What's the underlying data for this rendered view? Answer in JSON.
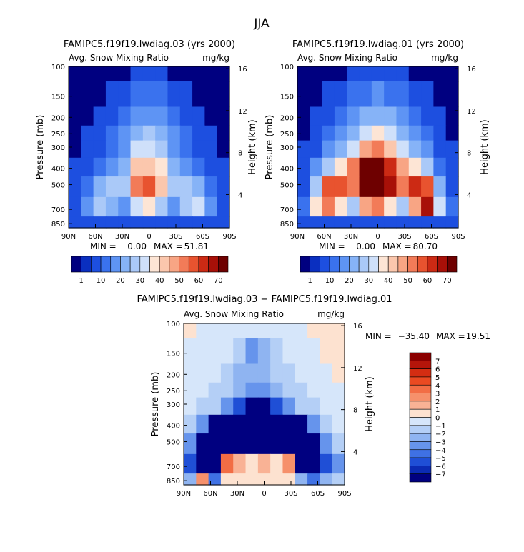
{
  "figure_title": "JJA",
  "colorbar_abs": {
    "labels": [
      "1",
      "10",
      "20",
      "30",
      "40",
      "50",
      "60",
      "70"
    ],
    "colors": [
      "#000080",
      "#0a2fc0",
      "#1d4fe0",
      "#3a72ee",
      "#5e94f4",
      "#86b3f7",
      "#aac9f8",
      "#cfe0fa",
      "#fde5d5",
      "#fbc7ad",
      "#f8a584",
      "#f27b58",
      "#e8532f",
      "#cc2a14",
      "#a81008",
      "#6e0000"
    ]
  },
  "colorbar_diff": {
    "labels": [
      "7",
      "6",
      "5",
      "4",
      "3",
      "2",
      "1",
      "0",
      "−1",
      "−2",
      "−3",
      "−4",
      "−5",
      "−6",
      "−7"
    ],
    "colors": [
      "#8b0000",
      "#b5150a",
      "#d42d12",
      "#ea4a22",
      "#f26d45",
      "#f6906b",
      "#f9b295",
      "#fde2d0",
      "#d6e6fa",
      "#b4cff6",
      "#8fb4f1",
      "#6694ec",
      "#3f71e4",
      "#1f4fd6",
      "#0b2bb4",
      "#000080"
    ]
  },
  "chart_data": [
    {
      "type": "heatmap",
      "title": "FAMIPC5.f19f19.lwdiag.03 (yrs 2000)",
      "subtitle_left": "Avg. Snow Mixing Ratio",
      "subtitle_right": "mg/kg",
      "xlabel": "",
      "ylabel": "Pressure (mb)",
      "ylabel_right": "Height (km)",
      "x_ticks": [
        "90N",
        "60N",
        "30N",
        "0",
        "30S",
        "60S",
        "90S"
      ],
      "y_ticks": [
        "100",
        "150",
        "200",
        "250",
        "300",
        "400",
        "500",
        "700",
        "850"
      ],
      "y_right_ticks": [
        "16",
        "12",
        "8",
        "4"
      ],
      "min_label": "MIN =",
      "min_value": "0.00",
      "max_label": "MAX =",
      "max_value": "51.81",
      "x_values": [
        90,
        75,
        60,
        45,
        30,
        15,
        0,
        -15,
        -30,
        -45,
        -60,
        -75,
        -90
      ],
      "p_levels": [
        100,
        150,
        200,
        250,
        300,
        400,
        500,
        700,
        850
      ],
      "values": [
        [
          0,
          0,
          0,
          0,
          0,
          1,
          1,
          1,
          0,
          0,
          0,
          0,
          0
        ],
        [
          0,
          0,
          0,
          1,
          3,
          6,
          7,
          6,
          3,
          1,
          0,
          0,
          0
        ],
        [
          0,
          0,
          1,
          3,
          6,
          12,
          14,
          12,
          6,
          3,
          1,
          0,
          0
        ],
        [
          0,
          1,
          2,
          5,
          10,
          18,
          20,
          17,
          10,
          5,
          2,
          1,
          0
        ],
        [
          0,
          2,
          4,
          8,
          14,
          26,
          28,
          24,
          14,
          8,
          4,
          2,
          0
        ],
        [
          1,
          4,
          8,
          12,
          18,
          35,
          38,
          30,
          18,
          12,
          8,
          4,
          1
        ],
        [
          2,
          8,
          15,
          20,
          24,
          45,
          50,
          35,
          22,
          20,
          15,
          8,
          2
        ],
        [
          4,
          12,
          22,
          18,
          12,
          25,
          30,
          20,
          12,
          22,
          28,
          12,
          4
        ],
        [
          1,
          1,
          1,
          1,
          1,
          1,
          1,
          1,
          1,
          1,
          1,
          1,
          1
        ]
      ]
    },
    {
      "type": "heatmap",
      "title": "FAMIPC5.f19f19.lwdiag.01 (yrs 2000)",
      "subtitle_left": "Avg. Snow Mixing Ratio",
      "subtitle_right": "mg/kg",
      "xlabel": "",
      "ylabel": "Pressure (mb)",
      "ylabel_right": "Height (km)",
      "x_ticks": [
        "90N",
        "60N",
        "30N",
        "0",
        "30S",
        "60S",
        "90S"
      ],
      "y_ticks": [
        "100",
        "150",
        "200",
        "250",
        "300",
        "400",
        "500",
        "700",
        "850"
      ],
      "y_right_ticks": [
        "16",
        "12",
        "8",
        "4"
      ],
      "min_label": "MIN =",
      "min_value": "0.00",
      "max_label": "MAX =",
      "max_value": "80.70",
      "x_values": [
        90,
        75,
        60,
        45,
        30,
        15,
        0,
        -15,
        -30,
        -45,
        -60,
        -75,
        -90
      ],
      "p_levels": [
        100,
        150,
        200,
        250,
        300,
        400,
        500,
        700,
        850
      ],
      "values": [
        [
          0,
          0,
          0,
          0,
          1,
          1,
          2,
          1,
          1,
          0,
          0,
          0,
          0
        ],
        [
          0,
          0,
          1,
          2,
          5,
          9,
          10,
          9,
          5,
          2,
          1,
          0,
          0
        ],
        [
          0,
          1,
          2,
          5,
          10,
          16,
          18,
          16,
          10,
          5,
          2,
          1,
          0
        ],
        [
          0,
          2,
          5,
          10,
          18,
          28,
          30,
          26,
          18,
          10,
          5,
          2,
          0
        ],
        [
          1,
          4,
          10,
          16,
          28,
          42,
          45,
          38,
          28,
          16,
          10,
          4,
          1
        ],
        [
          2,
          10,
          24,
          32,
          45,
          72,
          75,
          55,
          40,
          30,
          20,
          8,
          2
        ],
        [
          4,
          20,
          50,
          50,
          48,
          78,
          80,
          60,
          45,
          55,
          50,
          18,
          4
        ],
        [
          6,
          30,
          45,
          30,
          20,
          40,
          45,
          30,
          20,
          40,
          60,
          28,
          6
        ],
        [
          1,
          1,
          1,
          1,
          1,
          1,
          1,
          1,
          1,
          1,
          1,
          1,
          1
        ]
      ]
    },
    {
      "type": "heatmap",
      "title": "FAMIPC5.f19f19.lwdiag.03 − FAMIPC5.f19f19.lwdiag.01",
      "subtitle_left": "Avg. Snow Mixing Ratio",
      "subtitle_right": "mg/kg",
      "xlabel": "",
      "ylabel": "Pressure (mb)",
      "ylabel_right": "Height (km)",
      "x_ticks": [
        "90N",
        "60N",
        "30N",
        "0",
        "30S",
        "60S",
        "90S"
      ],
      "y_ticks": [
        "100",
        "150",
        "200",
        "250",
        "300",
        "400",
        "500",
        "700",
        "850"
      ],
      "y_right_ticks": [
        "16",
        "12",
        "8",
        "4"
      ],
      "min_label": "MIN =",
      "min_value": "−35.40",
      "max_label": "MAX =",
      "max_value": "19.51",
      "x_values": [
        90,
        75,
        60,
        45,
        30,
        15,
        0,
        -15,
        -30,
        -45,
        -60,
        -75,
        -90
      ],
      "p_levels": [
        100,
        150,
        200,
        250,
        300,
        400,
        500,
        700,
        850
      ],
      "values": [
        [
          0.3,
          -0.5,
          -0.5,
          -0.5,
          -1,
          -1,
          -1,
          -1,
          -0.5,
          -0.5,
          0.3,
          0.3,
          0.3
        ],
        [
          -0.5,
          -0.5,
          -0.5,
          -1,
          -2,
          -4,
          -3,
          -2,
          -1,
          -0.5,
          -0.5,
          0.3,
          0.3
        ],
        [
          -0.5,
          -0.5,
          -1,
          -1.5,
          -2.5,
          -3,
          -3,
          -2,
          -1.5,
          -1,
          -0.5,
          -0.5,
          0.3
        ],
        [
          -1,
          -1,
          -1.5,
          -2,
          -3,
          -4,
          -4,
          -3,
          -2,
          -1.5,
          -1,
          -0.5,
          -0.5
        ],
        [
          -1,
          -1.5,
          -2,
          -4,
          -6,
          -8,
          -8,
          -6,
          -4,
          -2,
          -1.5,
          -1,
          -0.5
        ],
        [
          -2,
          -4,
          -8,
          -10,
          -12,
          -15,
          -15,
          -12,
          -10,
          -8,
          -4,
          -2,
          -1
        ],
        [
          -4,
          -8,
          -12,
          -15,
          -18,
          -20,
          -20,
          -18,
          -15,
          -12,
          -8,
          -4,
          -2
        ],
        [
          -6,
          -10,
          -10,
          3,
          1,
          0.5,
          1,
          0.5,
          2,
          -8,
          -10,
          -6,
          -4
        ],
        [
          -3,
          2,
          -5,
          0.5,
          0.5,
          0.5,
          0.5,
          0.5,
          0.5,
          -3,
          -5,
          -3,
          -2
        ]
      ]
    }
  ]
}
